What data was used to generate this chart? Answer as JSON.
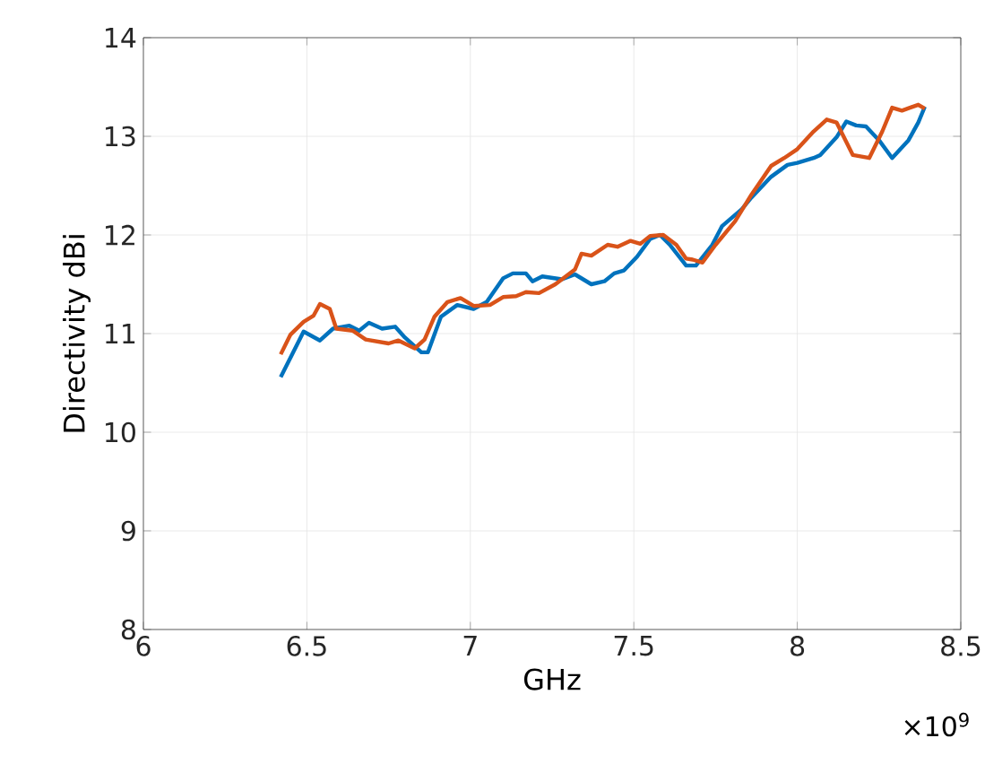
{
  "chart_data": {
    "type": "line",
    "xlabel": "GHz",
    "ylabel": "Directivity dBi",
    "xlim": [
      6,
      8.5
    ],
    "ylim": [
      8,
      14
    ],
    "xticks": [
      6,
      6.5,
      7,
      7.5,
      8,
      8.5
    ],
    "yticks": [
      8,
      9,
      10,
      11,
      12,
      13,
      14
    ],
    "grid": true,
    "line_style": "solid",
    "marker": "none",
    "annotations": [
      "×10$^{9}$"
    ],
    "series": [
      {
        "color": "#0072bd",
        "x": [
          6.42,
          6.49,
          6.54,
          6.58,
          6.63,
          6.66,
          6.69,
          6.73,
          6.77,
          6.8,
          6.85,
          6.87,
          6.91,
          6.96,
          7.01,
          7.05,
          7.1,
          7.13,
          7.17,
          7.19,
          7.22,
          7.28,
          7.32,
          7.37,
          7.41,
          7.44,
          7.47,
          7.51,
          7.55,
          7.58,
          7.61,
          7.66,
          7.69,
          7.74,
          7.77,
          7.83,
          7.86,
          7.92,
          7.97,
          8.0,
          8.05,
          8.07,
          8.12,
          8.15,
          8.18,
          8.21,
          8.25,
          8.29,
          8.34,
          8.37,
          8.39
        ],
        "values": [
          10.56,
          11.02,
          10.93,
          11.05,
          11.08,
          11.03,
          11.11,
          11.05,
          11.07,
          10.96,
          10.81,
          10.81,
          11.17,
          11.29,
          11.25,
          11.32,
          11.56,
          11.61,
          11.61,
          11.53,
          11.58,
          11.55,
          11.6,
          11.5,
          11.53,
          11.61,
          11.64,
          11.78,
          11.96,
          12.0,
          11.9,
          11.69,
          11.69,
          11.9,
          12.09,
          12.26,
          12.38,
          12.59,
          12.71,
          12.73,
          12.78,
          12.81,
          12.99,
          13.15,
          13.11,
          13.1,
          12.96,
          12.78,
          12.96,
          13.14,
          13.3
        ]
      },
      {
        "color": "#d95319",
        "x": [
          6.42,
          6.45,
          6.49,
          6.52,
          6.54,
          6.57,
          6.59,
          6.64,
          6.68,
          6.75,
          6.78,
          6.83,
          6.86,
          6.89,
          6.93,
          6.97,
          7.01,
          7.06,
          7.1,
          7.14,
          7.17,
          7.21,
          7.26,
          7.32,
          7.34,
          7.37,
          7.42,
          7.45,
          7.49,
          7.52,
          7.55,
          7.59,
          7.63,
          7.66,
          7.68,
          7.71,
          7.75,
          7.81,
          7.86,
          7.92,
          7.96,
          8.0,
          8.05,
          8.09,
          8.12,
          8.17,
          8.22,
          8.26,
          8.29,
          8.32,
          8.37,
          8.39
        ],
        "values": [
          10.79,
          10.99,
          11.12,
          11.18,
          11.3,
          11.25,
          11.05,
          11.03,
          10.94,
          10.9,
          10.93,
          10.85,
          10.94,
          11.17,
          11.32,
          11.36,
          11.28,
          11.29,
          11.37,
          11.38,
          11.42,
          11.41,
          11.5,
          11.65,
          11.81,
          11.79,
          11.9,
          11.88,
          11.94,
          11.91,
          11.99,
          12.0,
          11.9,
          11.76,
          11.75,
          11.72,
          11.9,
          12.14,
          12.41,
          12.7,
          12.78,
          12.87,
          13.05,
          13.17,
          13.14,
          12.81,
          12.78,
          13.05,
          13.29,
          13.26,
          13.32,
          13.28
        ]
      }
    ]
  }
}
